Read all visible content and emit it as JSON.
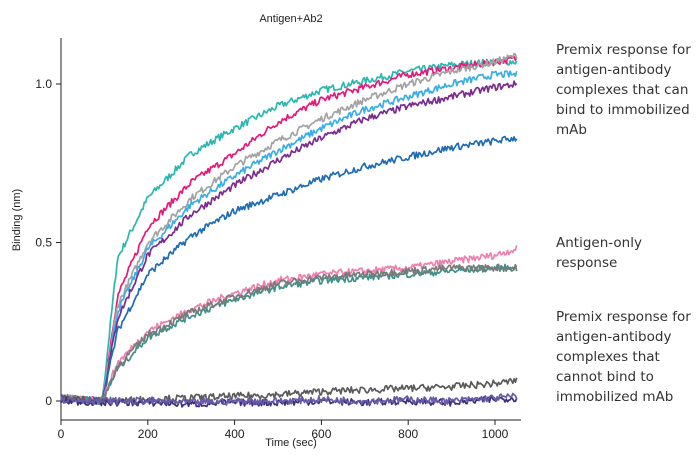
{
  "chart_data": {
    "type": "line",
    "title": "Antigen+Ab2",
    "xlabel": "Time (sec)",
    "ylabel": "Binding (nm)",
    "xlim": [
      0,
      1060
    ],
    "ylim": [
      -0.05,
      1.15
    ],
    "xticks": [
      0,
      200,
      400,
      600,
      800,
      1000
    ],
    "yticks": [
      0,
      0.5,
      1.0
    ],
    "ytick_labels": [
      "0",
      "0.5",
      "1.0"
    ],
    "association_start": 95,
    "grid": false,
    "series": [
      {
        "color": "#2bb7b0",
        "group": "binding",
        "x": [
          0,
          95,
          130,
          200,
          300,
          400,
          500,
          600,
          700,
          800,
          900,
          1000,
          1050
        ],
        "y": [
          0.01,
          0.0,
          0.45,
          0.64,
          0.78,
          0.86,
          0.93,
          0.98,
          1.01,
          1.04,
          1.06,
          1.07,
          1.07
        ]
      },
      {
        "color": "#e6187a",
        "group": "binding",
        "x": [
          0,
          95,
          130,
          200,
          300,
          400,
          500,
          600,
          700,
          800,
          900,
          1000,
          1050
        ],
        "y": [
          0.01,
          0.0,
          0.33,
          0.55,
          0.69,
          0.78,
          0.88,
          0.95,
          0.99,
          1.03,
          1.05,
          1.07,
          1.08
        ]
      },
      {
        "color": "#a3a3a3",
        "group": "binding",
        "x": [
          0,
          95,
          130,
          200,
          300,
          400,
          500,
          600,
          700,
          800,
          900,
          1000,
          1050
        ],
        "y": [
          0.01,
          0.0,
          0.3,
          0.5,
          0.64,
          0.74,
          0.82,
          0.89,
          0.95,
          1.0,
          1.04,
          1.07,
          1.09
        ]
      },
      {
        "color": "#3aaee6",
        "group": "binding",
        "x": [
          0,
          95,
          130,
          200,
          300,
          400,
          500,
          600,
          700,
          800,
          900,
          1000,
          1050
        ],
        "y": [
          0.01,
          0.0,
          0.28,
          0.48,
          0.62,
          0.71,
          0.79,
          0.86,
          0.92,
          0.96,
          1.0,
          1.03,
          1.03
        ]
      },
      {
        "color": "#7b2a8f",
        "group": "binding",
        "x": [
          0,
          95,
          130,
          200,
          300,
          400,
          500,
          600,
          700,
          800,
          900,
          1000,
          1050
        ],
        "y": [
          0.01,
          0.0,
          0.26,
          0.46,
          0.59,
          0.68,
          0.76,
          0.83,
          0.89,
          0.93,
          0.96,
          0.99,
          1.0
        ]
      },
      {
        "color": "#1f6cb5",
        "group": "binding",
        "x": [
          0,
          95,
          130,
          200,
          300,
          400,
          500,
          600,
          700,
          800,
          900,
          1000,
          1050
        ],
        "y": [
          0.01,
          0.0,
          0.22,
          0.4,
          0.52,
          0.6,
          0.65,
          0.7,
          0.74,
          0.77,
          0.8,
          0.82,
          0.83
        ]
      },
      {
        "color": "#ee7fae",
        "group": "antigen",
        "x": [
          0,
          95,
          130,
          200,
          300,
          400,
          500,
          600,
          700,
          800,
          900,
          1000,
          1050
        ],
        "y": [
          0.01,
          0.0,
          0.12,
          0.22,
          0.29,
          0.34,
          0.38,
          0.4,
          0.41,
          0.42,
          0.44,
          0.46,
          0.48
        ]
      },
      {
        "color": "#3f8f8a",
        "group": "antigen",
        "x": [
          0,
          95,
          130,
          200,
          300,
          400,
          500,
          600,
          700,
          800,
          900,
          1000,
          1050
        ],
        "y": [
          0.01,
          0.0,
          0.1,
          0.2,
          0.27,
          0.32,
          0.36,
          0.38,
          0.39,
          0.4,
          0.41,
          0.42,
          0.42
        ]
      },
      {
        "color": "#7a7a7a",
        "group": "antigen",
        "x": [
          0,
          95,
          130,
          200,
          300,
          400,
          500,
          600,
          700,
          800,
          900,
          1000,
          1050
        ],
        "y": [
          0.01,
          0.0,
          0.11,
          0.21,
          0.28,
          0.33,
          0.37,
          0.39,
          0.4,
          0.41,
          0.42,
          0.42,
          0.42
        ]
      },
      {
        "color": "#5a5a5a",
        "group": "nonbinding",
        "x": [
          0,
          95,
          200,
          300,
          400,
          500,
          600,
          700,
          800,
          900,
          1000,
          1050
        ],
        "y": [
          0.01,
          0.0,
          0.005,
          0.01,
          0.015,
          0.02,
          0.03,
          0.035,
          0.04,
          0.045,
          0.055,
          0.065
        ]
      },
      {
        "color": "#3b2f7d",
        "group": "nonbinding",
        "x": [
          0,
          95,
          200,
          300,
          400,
          500,
          600,
          700,
          800,
          900,
          1000,
          1050
        ],
        "y": [
          0.0,
          -0.005,
          -0.005,
          -0.01,
          -0.005,
          -0.005,
          0.0,
          -0.005,
          0.0,
          -0.005,
          0.005,
          0.01
        ]
      },
      {
        "color": "#6a5aa8",
        "group": "nonbinding",
        "x": [
          0,
          95,
          200,
          300,
          400,
          500,
          600,
          700,
          800,
          900,
          1000,
          1050
        ],
        "y": [
          0.005,
          0.0,
          0.0,
          -0.005,
          0.0,
          0.0,
          0.005,
          0.0,
          0.005,
          0.0,
          0.01,
          0.015
        ]
      }
    ]
  },
  "annotations": {
    "binding": "Premix response for antigen-antibody complexes that can bind to immobilized mAb",
    "antigen": "Antigen-only response",
    "nonbinding": "Premix response for antigen-antibody complexes that cannot bind to immobilized mAb"
  }
}
